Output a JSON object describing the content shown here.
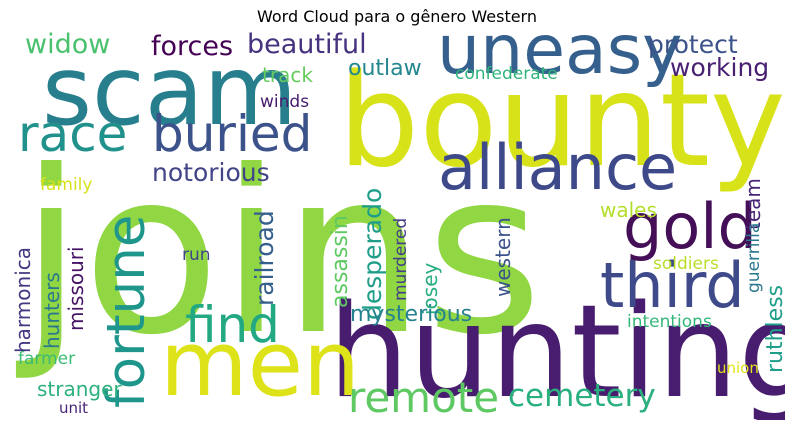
{
  "title": "Word Cloud para o gênero Western",
  "colors": {
    "background": "#ffffff",
    "text": "#000000"
  },
  "words": [
    {
      "text": "joins",
      "color": "#90d743"
    },
    {
      "text": "hunting",
      "color": "#481d6f"
    },
    {
      "text": "bounty",
      "color": "#d8e219"
    },
    {
      "text": "scam",
      "color": "#277f8e"
    },
    {
      "text": "men",
      "color": "#dde318"
    },
    {
      "text": "uneasy",
      "color": "#355f8d"
    },
    {
      "text": "alliance",
      "color": "#3e4989"
    },
    {
      "text": "third",
      "color": "#3e4a89"
    },
    {
      "text": "fortune",
      "color": "#1f968b"
    },
    {
      "text": "gold",
      "color": "#440f56"
    },
    {
      "text": "buried",
      "color": "#3b528b"
    },
    {
      "text": "race",
      "color": "#21918c"
    },
    {
      "text": "find",
      "color": "#23a884"
    },
    {
      "text": "remote",
      "color": "#5ec962"
    },
    {
      "text": "cemetery",
      "color": "#2ab07f"
    },
    {
      "text": "widow",
      "color": "#4ac16d"
    },
    {
      "text": "forces",
      "color": "#440154"
    },
    {
      "text": "beautiful",
      "color": "#46327e"
    },
    {
      "text": "protect",
      "color": "#3b528b"
    },
    {
      "text": "working",
      "color": "#482173"
    },
    {
      "text": "outlaw",
      "color": "#24868e"
    },
    {
      "text": "confederate",
      "color": "#2fb47c"
    },
    {
      "text": "track",
      "color": "#65cb5e"
    },
    {
      "text": "winds",
      "color": "#481c6e"
    },
    {
      "text": "notorious",
      "color": "#414487"
    },
    {
      "text": "harmonica",
      "color": "#453781"
    },
    {
      "text": "family",
      "color": "#d5e21a"
    },
    {
      "text": "hunters",
      "color": "#2a788e"
    },
    {
      "text": "missouri",
      "color": "#471365"
    },
    {
      "text": "railroad",
      "color": "#355f8d"
    },
    {
      "text": "assassin",
      "color": "#5ec962"
    },
    {
      "text": "desperado",
      "color": "#1e9d89"
    },
    {
      "text": "murdered",
      "color": "#433e85"
    },
    {
      "text": "josey",
      "color": "#27ad81"
    },
    {
      "text": "western",
      "color": "#3b528b"
    },
    {
      "text": "run",
      "color": "#404688"
    },
    {
      "text": "wales",
      "color": "#b5de2b"
    },
    {
      "text": "team",
      "color": "#482475"
    },
    {
      "text": "guerrilla",
      "color": "#2a788e"
    },
    {
      "text": "ruthless",
      "color": "#1f9e89"
    },
    {
      "text": "soldiers",
      "color": "#b8de29"
    },
    {
      "text": "mysterious",
      "color": "#26828e"
    },
    {
      "text": "intentions",
      "color": "#35b779"
    },
    {
      "text": "farmer",
      "color": "#3bbb75"
    },
    {
      "text": "stranger",
      "color": "#2db27d"
    },
    {
      "text": "unit",
      "color": "#482475"
    },
    {
      "text": "union",
      "color": "#e2e418"
    }
  ]
}
